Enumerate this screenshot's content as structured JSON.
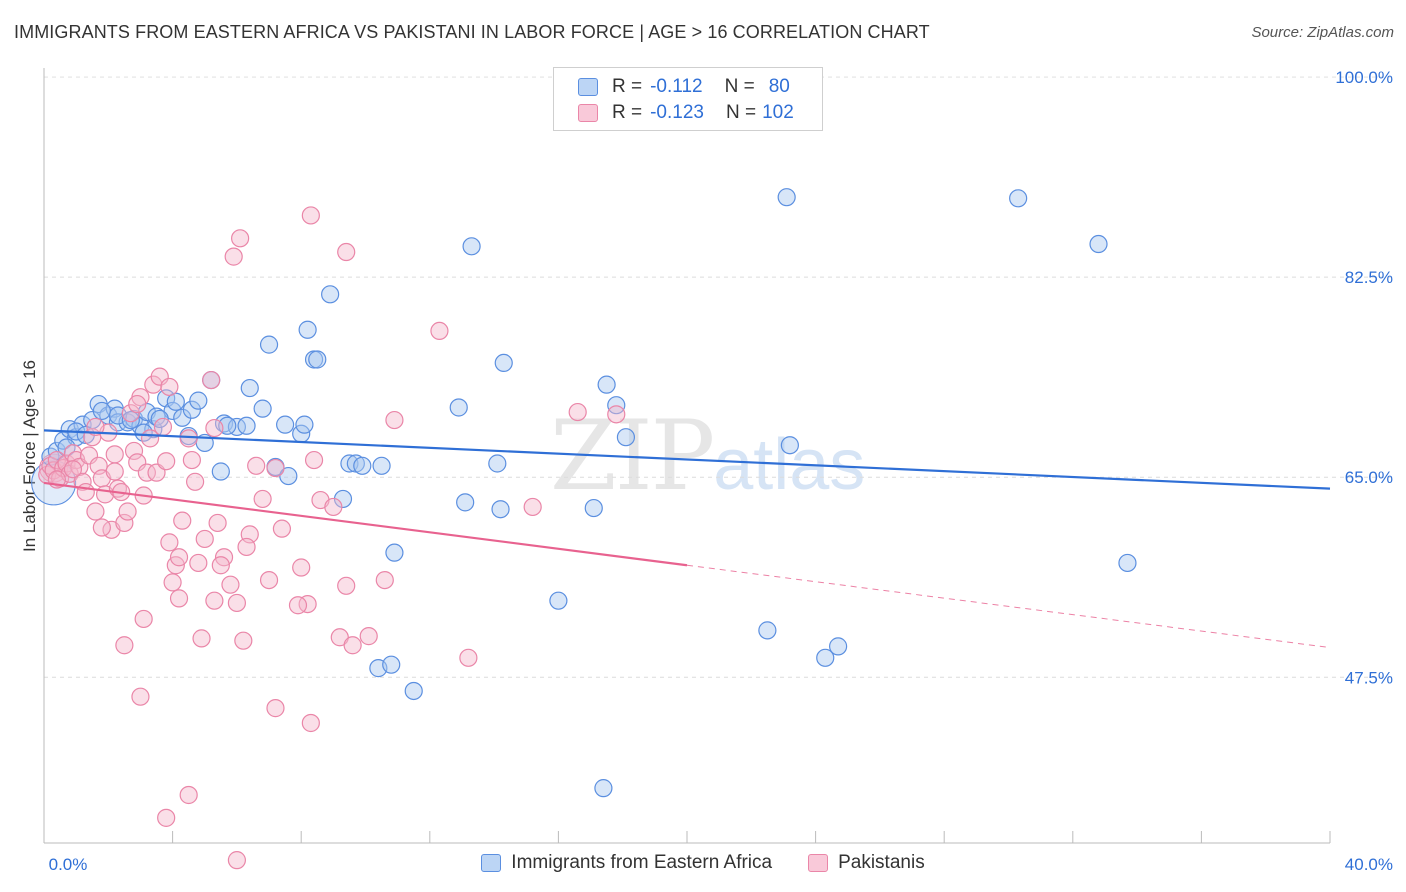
{
  "title": "IMMIGRANTS FROM EASTERN AFRICA VS PAKISTANI IN LABOR FORCE | AGE > 16 CORRELATION CHART",
  "source": "Source: ZipAtlas.com",
  "watermark": {
    "zip": "ZIP",
    "atlas": "atlas"
  },
  "colors": {
    "blue": "#2f6fd6",
    "pink": "#e8628f",
    "blue_fill": "#a9c8f0",
    "pink_fill": "#f5b8cc",
    "grid": "#dddddd"
  },
  "legend": {
    "rows": [
      {
        "r_label": "R =",
        "r_value": "-0.112",
        "n_label": "N =",
        "n_value": "80"
      },
      {
        "r_label": "R =",
        "r_value": "-0.123",
        "n_label": "N =",
        "n_value": "102"
      }
    ]
  },
  "bottom_legend": [
    "Immigrants from Eastern Africa",
    "Pakistanis"
  ],
  "chart_data": {
    "type": "scatter",
    "title": "IMMIGRANTS FROM EASTERN AFRICA VS PAKISTANI IN LABOR FORCE | AGE > 16 CORRELATION CHART",
    "xlabel": "",
    "ylabel": "In Labor Force | Age > 16",
    "xlim": [
      0,
      40
    ],
    "ylim": [
      33,
      101.5
    ],
    "x_tick_labels": [
      "0.0%",
      "40.0%"
    ],
    "y_ticks": [
      47.5,
      65.0,
      82.5,
      100.0
    ],
    "y_tick_labels": [
      "47.5%",
      "65.0%",
      "82.5%",
      "100.0%"
    ],
    "grid": true,
    "legend_position": "top-center",
    "series": [
      {
        "name": "Immigrants from Eastern Africa",
        "color": "#2f6fd6",
        "trend": {
          "x": [
            0,
            40
          ],
          "y": [
            69.1,
            64.0
          ],
          "dashed_from": null
        },
        "points": [
          [
            0.2,
            66.8
          ],
          [
            0.4,
            67.3
          ],
          [
            0.6,
            68.2
          ],
          [
            0.8,
            69.2
          ],
          [
            1.0,
            68.5
          ],
          [
            1.2,
            69.6
          ],
          [
            1.5,
            70.0
          ],
          [
            1.7,
            71.4
          ],
          [
            2.0,
            70.4
          ],
          [
            2.2,
            71.0
          ],
          [
            2.3,
            69.8
          ],
          [
            2.6,
            69.8
          ],
          [
            2.8,
            70.1
          ],
          [
            3.0,
            69.5
          ],
          [
            3.2,
            70.7
          ],
          [
            3.4,
            69.2
          ],
          [
            3.5,
            70.3
          ],
          [
            3.8,
            71.9
          ],
          [
            4.0,
            70.8
          ],
          [
            4.3,
            70.2
          ],
          [
            4.6,
            70.9
          ],
          [
            4.8,
            71.7
          ],
          [
            5.0,
            68.0
          ],
          [
            5.2,
            73.5
          ],
          [
            5.5,
            65.5
          ],
          [
            5.6,
            69.7
          ],
          [
            6.0,
            69.4
          ],
          [
            6.4,
            72.8
          ],
          [
            6.8,
            71.0
          ],
          [
            7.0,
            76.6
          ],
          [
            7.2,
            65.9
          ],
          [
            7.5,
            69.6
          ],
          [
            7.6,
            65.1
          ],
          [
            8.0,
            68.8
          ],
          [
            8.2,
            77.9
          ],
          [
            8.4,
            75.3
          ],
          [
            8.9,
            81.0
          ],
          [
            9.3,
            63.1
          ],
          [
            9.5,
            66.2
          ],
          [
            9.7,
            66.2
          ],
          [
            10.5,
            66.0
          ],
          [
            10.9,
            58.4
          ],
          [
            10.4,
            48.3
          ],
          [
            10.8,
            48.6
          ],
          [
            11.5,
            46.3
          ],
          [
            12.9,
            71.1
          ],
          [
            13.1,
            62.8
          ],
          [
            13.3,
            85.2
          ],
          [
            14.1,
            66.2
          ],
          [
            14.2,
            62.2
          ],
          [
            14.3,
            75.0
          ],
          [
            16.0,
            54.2
          ],
          [
            17.1,
            62.3
          ],
          [
            17.5,
            73.1
          ],
          [
            17.8,
            71.3
          ],
          [
            17.4,
            37.8
          ],
          [
            18.1,
            68.5
          ],
          [
            22.5,
            51.6
          ],
          [
            23.1,
            89.5
          ],
          [
            23.2,
            67.8
          ],
          [
            24.3,
            49.2
          ],
          [
            24.7,
            50.2
          ],
          [
            30.3,
            89.4
          ],
          [
            32.8,
            85.4
          ],
          [
            33.7,
            57.5
          ],
          [
            2.3,
            70.4
          ],
          [
            1.0,
            69.0
          ],
          [
            6.3,
            69.5
          ],
          [
            1.8,
            70.8
          ],
          [
            3.6,
            70.1
          ],
          [
            0.7,
            67.6
          ],
          [
            5.7,
            69.5
          ],
          [
            4.1,
            71.6
          ],
          [
            3.1,
            68.9
          ],
          [
            2.7,
            70.0
          ],
          [
            8.1,
            69.6
          ],
          [
            4.5,
            68.6
          ],
          [
            8.5,
            75.3
          ],
          [
            9.9,
            66.0
          ],
          [
            1.3,
            68.7
          ]
        ]
      },
      {
        "name": "Pakistanis",
        "color": "#e8628f",
        "trend": {
          "x": [
            0,
            20,
            40
          ],
          "y": [
            64.5,
            57.3,
            50.1
          ],
          "dashed_from": 20
        },
        "points": [
          [
            0.1,
            65.2
          ],
          [
            0.2,
            66.0
          ],
          [
            0.3,
            65.6
          ],
          [
            0.4,
            66.5
          ],
          [
            0.5,
            64.9
          ],
          [
            0.6,
            65.8
          ],
          [
            0.7,
            66.2
          ],
          [
            0.8,
            65.3
          ],
          [
            0.9,
            67.1
          ],
          [
            1.0,
            66.5
          ],
          [
            1.1,
            65.9
          ],
          [
            1.2,
            64.6
          ],
          [
            1.3,
            63.7
          ],
          [
            1.4,
            66.9
          ],
          [
            1.5,
            68.5
          ],
          [
            1.6,
            62.0
          ],
          [
            1.7,
            66.0
          ],
          [
            1.8,
            64.9
          ],
          [
            1.9,
            63.5
          ],
          [
            2.0,
            68.9
          ],
          [
            2.1,
            60.4
          ],
          [
            2.2,
            67.0
          ],
          [
            2.3,
            64.0
          ],
          [
            2.4,
            63.7
          ],
          [
            2.5,
            61.0
          ],
          [
            2.6,
            62.0
          ],
          [
            2.7,
            70.6
          ],
          [
            2.8,
            67.3
          ],
          [
            2.9,
            66.3
          ],
          [
            3.0,
            72.0
          ],
          [
            3.1,
            63.4
          ],
          [
            3.2,
            65.4
          ],
          [
            3.3,
            68.4
          ],
          [
            3.4,
            73.1
          ],
          [
            3.5,
            65.4
          ],
          [
            3.6,
            73.8
          ],
          [
            3.7,
            69.4
          ],
          [
            3.8,
            66.4
          ],
          [
            3.9,
            59.3
          ],
          [
            4.0,
            55.8
          ],
          [
            4.1,
            57.3
          ],
          [
            4.2,
            54.4
          ],
          [
            4.3,
            61.2
          ],
          [
            4.5,
            68.4
          ],
          [
            4.6,
            66.5
          ],
          [
            4.7,
            64.6
          ],
          [
            4.8,
            57.5
          ],
          [
            4.9,
            50.9
          ],
          [
            5.0,
            59.6
          ],
          [
            5.2,
            73.5
          ],
          [
            5.3,
            54.2
          ],
          [
            5.4,
            61.0
          ],
          [
            5.6,
            58.0
          ],
          [
            5.8,
            55.6
          ],
          [
            6.0,
            54.0
          ],
          [
            6.2,
            50.7
          ],
          [
            6.4,
            60.0
          ],
          [
            6.6,
            66.0
          ],
          [
            6.8,
            63.1
          ],
          [
            7.0,
            56.0
          ],
          [
            7.2,
            44.8
          ],
          [
            7.4,
            60.5
          ],
          [
            8.0,
            57.1
          ],
          [
            8.2,
            53.9
          ],
          [
            8.4,
            66.5
          ],
          [
            8.6,
            63.0
          ],
          [
            9.0,
            62.4
          ],
          [
            9.2,
            51.0
          ],
          [
            9.4,
            55.5
          ],
          [
            9.6,
            50.3
          ],
          [
            10.1,
            51.1
          ],
          [
            10.6,
            56.0
          ],
          [
            10.9,
            70.0
          ],
          [
            12.3,
            77.8
          ],
          [
            13.2,
            49.2
          ],
          [
            15.2,
            62.4
          ],
          [
            16.6,
            70.7
          ],
          [
            17.8,
            70.5
          ],
          [
            8.3,
            87.9
          ],
          [
            9.4,
            84.7
          ],
          [
            6.1,
            85.9
          ],
          [
            5.9,
            84.3
          ],
          [
            8.3,
            43.5
          ],
          [
            4.5,
            37.2
          ],
          [
            3.8,
            35.2
          ],
          [
            6.0,
            31.5
          ],
          [
            3.0,
            45.8
          ],
          [
            2.5,
            50.3
          ],
          [
            3.1,
            52.6
          ],
          [
            4.2,
            58.0
          ],
          [
            5.5,
            57.3
          ],
          [
            1.8,
            60.6
          ],
          [
            7.2,
            65.8
          ],
          [
            2.9,
            71.4
          ],
          [
            0.9,
            65.7
          ],
          [
            1.6,
            69.4
          ],
          [
            0.4,
            64.8
          ],
          [
            6.3,
            58.9
          ],
          [
            3.9,
            72.9
          ],
          [
            2.2,
            65.5
          ],
          [
            5.3,
            69.3
          ],
          [
            7.9,
            53.8
          ]
        ]
      }
    ]
  }
}
